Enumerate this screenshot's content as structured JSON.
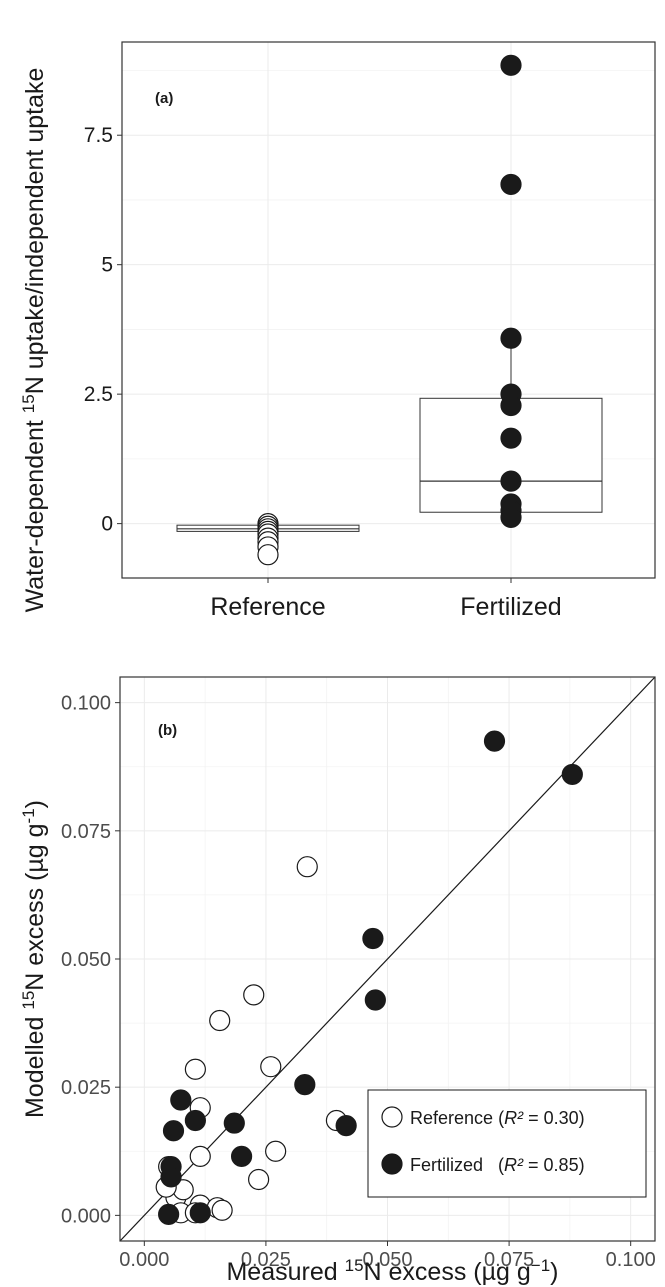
{
  "chart_data": [
    {
      "panel": "(a)",
      "type": "boxplot",
      "categories": [
        "Reference",
        "Fertilized"
      ],
      "ylabel": "Water-dependent ¹⁵N uptake/independent uptake",
      "ylabel_parts": [
        "Water-dependent ",
        "15",
        "N uptake/independent uptake"
      ],
      "yticks": [
        0,
        2.5,
        5,
        7.5
      ],
      "ytick_labels": [
        "0",
        "2.5",
        "5",
        "7.5"
      ],
      "ylim": [
        -1.05,
        9.3
      ],
      "boxes": [
        {
          "category": "Reference",
          "q1": -0.15,
          "median": -0.1,
          "q3": -0.03,
          "whisker_low": -0.5,
          "whisker_high": 0.0
        },
        {
          "category": "Fertilized",
          "q1": 0.22,
          "median": 0.82,
          "q3": 2.42,
          "whisker_low": 0.08,
          "whisker_high": 3.58
        }
      ],
      "series": [
        {
          "name": "Reference",
          "category": "Reference",
          "fill": "#ffffff",
          "values": [
            0.0,
            -0.05,
            -0.1,
            -0.15,
            -0.2,
            -0.28,
            -0.35,
            -0.45,
            -0.6
          ]
        },
        {
          "name": "Fertilized",
          "category": "Fertilized",
          "fill": "#1a1a1a",
          "values": [
            8.85,
            6.55,
            3.58,
            2.5,
            2.28,
            1.65,
            0.82,
            0.38,
            0.25,
            0.12
          ]
        }
      ]
    },
    {
      "panel": "(b)",
      "type": "scatter",
      "xlabel": "Measured ¹⁵N excess (µg g⁻¹)",
      "xlabel_parts": [
        "Measured ",
        "15",
        "N excess (µg g",
        "−1",
        ")"
      ],
      "ylabel": "Modelled ¹⁵N excess (µg g⁻¹)",
      "ylabel_parts": [
        "Modelled ",
        "15",
        "N excess (µg g",
        "-1",
        ")"
      ],
      "xticks": [
        0,
        0.025,
        0.05,
        0.075,
        0.1
      ],
      "xtick_labels": [
        "0.000",
        "0.025",
        "0.050",
        "0.075",
        "0.100"
      ],
      "yticks": [
        0,
        0.025,
        0.05,
        0.075,
        0.1
      ],
      "ytick_labels": [
        "0.000",
        "0.025",
        "0.050",
        "0.075",
        "0.100"
      ],
      "xlim": [
        -0.005,
        0.105
      ],
      "ylim": [
        -0.005,
        0.105
      ],
      "reference_line": "1:1",
      "legend_placement": "bottom-right",
      "series": [
        {
          "name": "Reference",
          "r2_label": "R²",
          "r2_value": " = 0.30)",
          "fill": "#ffffff",
          "x": [
            0.0335,
            0.0225,
            0.0155,
            0.026,
            0.0105,
            0.0115,
            0.0115,
            0.027,
            0.0235,
            0.0395,
            0.005,
            0.005,
            0.0065,
            0.008,
            0.0045,
            0.0115,
            0.0075,
            0.015,
            0.016,
            0.0105
          ],
          "y": [
            0.068,
            0.043,
            0.038,
            0.029,
            0.0285,
            0.021,
            0.0115,
            0.0125,
            0.007,
            0.0185,
            0.0095,
            0.006,
            0.0035,
            0.005,
            0.0055,
            0.002,
            0.0005,
            0.0015,
            0.001,
            0.0005
          ]
        },
        {
          "name": "Fertilized",
          "r2_label": "R²",
          "r2_value": " = 0.85)",
          "fill": "#1a1a1a",
          "x": [
            0.072,
            0.088,
            0.047,
            0.0475,
            0.033,
            0.0415,
            0.0185,
            0.0105,
            0.0075,
            0.006,
            0.02,
            0.0055,
            0.0055,
            0.0115,
            0.005
          ],
          "y": [
            0.0925,
            0.086,
            0.054,
            0.042,
            0.0255,
            0.0175,
            0.018,
            0.0185,
            0.0225,
            0.0165,
            0.0115,
            0.0095,
            0.0075,
            0.0005,
            0.0002
          ]
        }
      ]
    }
  ]
}
